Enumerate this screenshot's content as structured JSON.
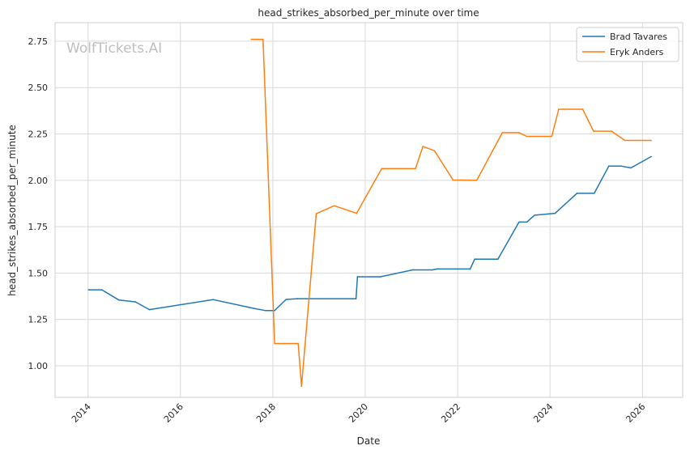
{
  "chart_data": {
    "type": "line",
    "title": "head_strikes_absorbed_per_minute over time",
    "xlabel": "Date",
    "ylabel": "head_strikes_absorbed_per_minute",
    "watermark": "WolfTickets.AI",
    "xlim": [
      "2013-04-15",
      "2026-11-15"
    ],
    "ylim": [
      0.83,
      2.85
    ],
    "xticks": [
      "2014",
      "2016",
      "2018",
      "2020",
      "2022",
      "2024",
      "2026"
    ],
    "yticks": [
      "1.00",
      "1.25",
      "1.50",
      "1.75",
      "2.00",
      "2.25",
      "2.50",
      "2.75"
    ],
    "grid": true,
    "legend_position": "top-right",
    "series": [
      {
        "name": "Brad Tavares",
        "color": "#1f77b4",
        "points": [
          [
            "2014-01-05",
            1.41
          ],
          [
            "2014-04-20",
            1.41
          ],
          [
            "2014-09-01",
            1.355
          ],
          [
            "2015-01-10",
            1.345
          ],
          [
            "2015-05-01",
            1.303
          ],
          [
            "2016-09-15",
            1.357
          ],
          [
            "2017-08-01",
            1.31
          ],
          [
            "2017-11-01",
            1.298
          ],
          [
            "2018-01-15",
            1.298
          ],
          [
            "2018-04-15",
            1.358
          ],
          [
            "2018-07-15",
            1.362
          ],
          [
            "2019-10-20",
            1.362
          ],
          [
            "2019-11-01",
            1.48
          ],
          [
            "2020-05-01",
            1.48
          ],
          [
            "2021-01-10",
            1.517
          ],
          [
            "2021-06-15",
            1.517
          ],
          [
            "2021-07-20",
            1.522
          ],
          [
            "2022-04-10",
            1.522
          ],
          [
            "2022-05-15",
            1.575
          ],
          [
            "2022-11-15",
            1.575
          ],
          [
            "2023-05-01",
            1.775
          ],
          [
            "2023-07-01",
            1.775
          ],
          [
            "2023-09-01",
            1.812
          ],
          [
            "2024-02-10",
            1.822
          ],
          [
            "2024-08-01",
            1.93
          ],
          [
            "2024-12-15",
            1.93
          ],
          [
            "2025-04-10",
            2.077
          ],
          [
            "2025-07-15",
            2.077
          ],
          [
            "2025-10-01",
            2.067
          ],
          [
            "2026-03-10",
            2.128
          ]
        ]
      },
      {
        "name": "Eryk Anders",
        "color": "#ff7f0e",
        "points": [
          [
            "2017-07-15",
            2.76
          ],
          [
            "2017-10-15",
            2.76
          ],
          [
            "2018-01-15",
            1.12
          ],
          [
            "2018-07-20",
            1.12
          ],
          [
            "2018-08-15",
            0.89
          ],
          [
            "2018-12-10",
            1.82
          ],
          [
            "2019-05-01",
            1.863
          ],
          [
            "2019-10-25",
            1.822
          ],
          [
            "2020-05-10",
            2.063
          ],
          [
            "2021-02-01",
            2.063
          ],
          [
            "2021-04-01",
            2.182
          ],
          [
            "2021-07-01",
            2.16
          ],
          [
            "2021-11-25",
            2.002
          ],
          [
            "2022-06-01",
            2.0
          ],
          [
            "2022-12-20",
            2.257
          ],
          [
            "2023-05-01",
            2.257
          ],
          [
            "2023-07-01",
            2.237
          ],
          [
            "2024-01-15",
            2.237
          ],
          [
            "2024-03-10",
            2.383
          ],
          [
            "2024-09-15",
            2.383
          ],
          [
            "2024-12-10",
            2.265
          ],
          [
            "2025-05-01",
            2.265
          ],
          [
            "2025-08-15",
            2.215
          ],
          [
            "2026-03-10",
            2.215
          ]
        ]
      }
    ]
  }
}
